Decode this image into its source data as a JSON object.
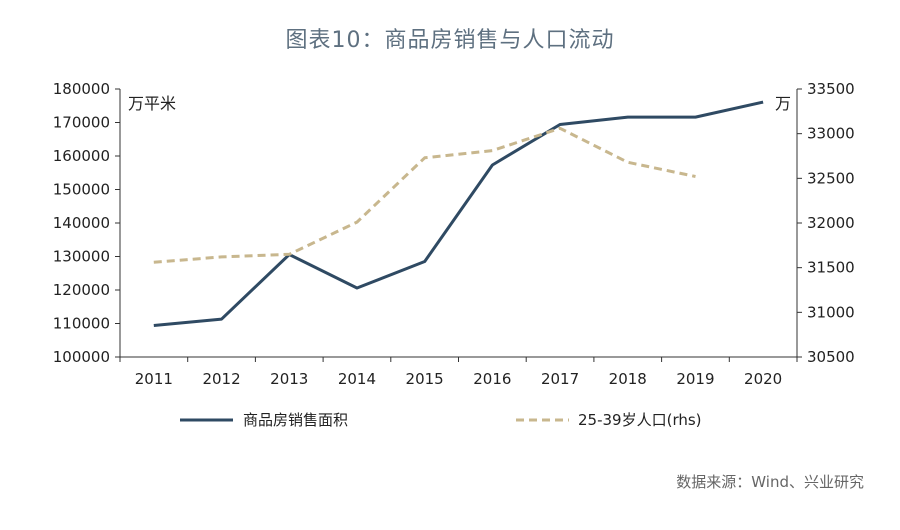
{
  "chart_data": {
    "type": "line",
    "title": "图表10：商品房销售与人口流动",
    "categories": [
      "2011",
      "2012",
      "2013",
      "2014",
      "2015",
      "2016",
      "2017",
      "2018",
      "2019",
      "2020"
    ],
    "left_axis": {
      "unit_label": "万平米",
      "range": [
        100000,
        180000
      ],
      "ticks": [
        100000,
        110000,
        120000,
        130000,
        140000,
        150000,
        160000,
        170000,
        180000
      ]
    },
    "right_axis": {
      "unit_label": "万",
      "range": [
        30500,
        33500
      ],
      "ticks": [
        30500,
        31000,
        31500,
        32000,
        32500,
        33000,
        33500
      ]
    },
    "series": [
      {
        "name": "商品房销售面积",
        "axis": "left",
        "style": "solid",
        "color": "#2f4a63",
        "values": [
          109400,
          111300,
          130600,
          120600,
          128500,
          157300,
          169400,
          171600,
          171600,
          176100
        ]
      },
      {
        "name": "25-39岁人口(rhs)",
        "axis": "right",
        "style": "dashed",
        "color": "#c8b78e",
        "values": [
          31560,
          31620,
          31650,
          32010,
          32730,
          32810,
          33060,
          32680,
          32520,
          null
        ]
      }
    ],
    "source": "数据来源：Wind、兴业研究"
  }
}
